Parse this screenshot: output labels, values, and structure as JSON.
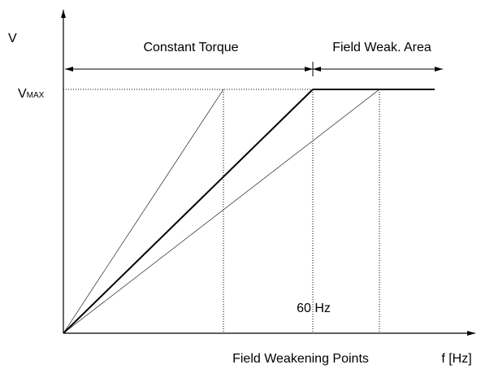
{
  "axes": {
    "y_label": "V",
    "x_label": "f [Hz]"
  },
  "vmax": {
    "main": "V",
    "sub": "MAX"
  },
  "regions": {
    "constant_torque": "Constant Torque",
    "field_weak": "Field Weak. Area"
  },
  "marker": "60 Hz",
  "caption": "Field Weakening Points"
}
